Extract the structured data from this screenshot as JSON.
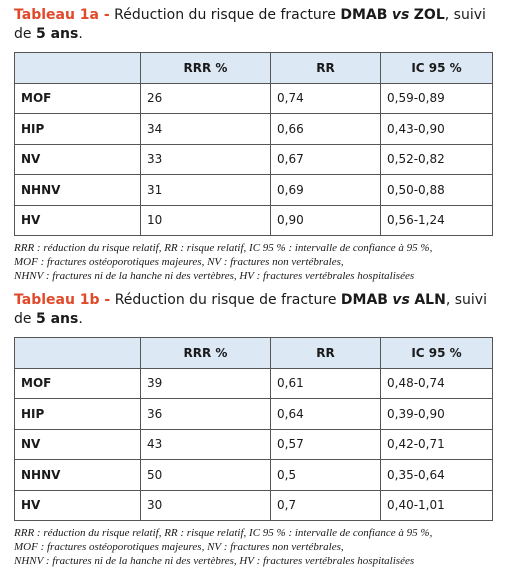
{
  "sections": [
    {
      "title": {
        "label": "Tableau 1a -",
        "parts": [
          "Réduction du risque de fracture ",
          "DMAB",
          "vs",
          "ZOL",
          ", suivi de ",
          "5 ans",
          "."
        ]
      },
      "table": {
        "header": [
          "RRR %",
          "RR",
          "IC 95 %"
        ],
        "rows": [
          [
            "MOF",
            "26",
            "0,74",
            "0,59-0,89"
          ],
          [
            "HIP",
            "34",
            "0,66",
            "0,43-0,90"
          ],
          [
            "NV",
            "33",
            "0,67",
            "0,52-0,82"
          ],
          [
            "NHNV",
            "31",
            "0,69",
            "0,50-0,88"
          ],
          [
            "HV",
            "10",
            "0,90",
            "0,56-1,24"
          ]
        ]
      },
      "footnote": [
        "RRR : réduction du risque relatif, RR : risque relatif, IC 95 % : intervalle de confiance à 95 %,",
        "MOF : fractures ostéoporotiques majeures, NV : fractures non vertébrales,",
        "NHNV : fractures ni de la hanche ni des vertèbres, HV : fractures vertébrales hospitalisées"
      ]
    },
    {
      "title": {
        "label": "Tableau 1b -",
        "parts": [
          "Réduction du risque de fracture ",
          "DMAB",
          "vs",
          "ALN",
          ", suivi de ",
          "5 ans",
          "."
        ]
      },
      "table": {
        "header": [
          "RRR %",
          "RR",
          "IC 95 %"
        ],
        "rows": [
          [
            "MOF",
            "39",
            "0,61",
            "0,48-0,74"
          ],
          [
            "HIP",
            "36",
            "0,64",
            "0,39-0,90"
          ],
          [
            "NV",
            "43",
            "0,57",
            "0,42-0,71"
          ],
          [
            "NHNV",
            "50",
            "0,5",
            "0,35-0,64"
          ],
          [
            "HV",
            "30",
            "0,7",
            "0,40-1,01"
          ]
        ]
      },
      "footnote": [
        "RRR : réduction du risque relatif, RR : risque relatif, IC 95 % : intervalle de confiance à 95 %,",
        "MOF : fractures ostéoporotiques majeures, NV : fractures non vertébrales,",
        "NHNV : fractures ni de la hanche ni des vertèbres, HV : fractures vertébrales hospitalisées"
      ]
    }
  ]
}
